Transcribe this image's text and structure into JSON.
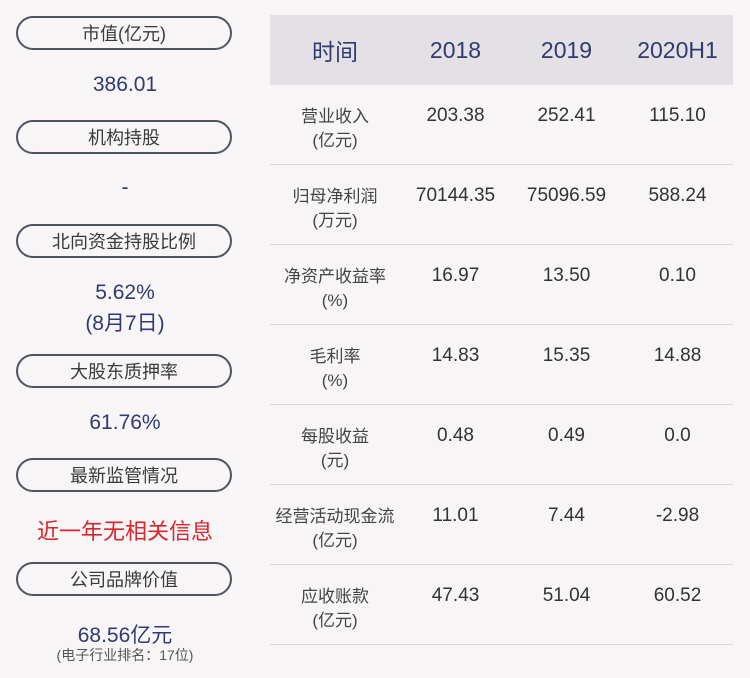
{
  "left": {
    "items": [
      {
        "label": "市值(亿元)",
        "value": "386.01"
      },
      {
        "label": "机构持股",
        "value": "-"
      },
      {
        "label": "北向资金持股比例",
        "value": "5.62%",
        "value2": "(8月7日)"
      },
      {
        "label": "大股东质押率",
        "value": "61.76%"
      },
      {
        "label": "最新监管情况",
        "value": "近一年无相关信息"
      },
      {
        "label": "公司品牌价值",
        "value": "68.56亿元",
        "note": "(电子行业排名：17位)"
      }
    ]
  },
  "table": {
    "headers": [
      "时间",
      "2018",
      "2019",
      "2020H1"
    ],
    "rows": [
      {
        "label1": "营业收入",
        "label2": "(亿元)",
        "v": [
          "203.38",
          "252.41",
          "115.10"
        ]
      },
      {
        "label1": "归母净利润",
        "label2": "(万元)",
        "v": [
          "70144.35",
          "75096.59",
          "588.24"
        ]
      },
      {
        "label1": "净资产收益率",
        "label2": "(%)",
        "v": [
          "16.97",
          "13.50",
          "0.10"
        ]
      },
      {
        "label1": "毛利率",
        "label2": "(%)",
        "v": [
          "14.83",
          "15.35",
          "14.88"
        ]
      },
      {
        "label1": "每股收益",
        "label2": "(元)",
        "v": [
          "0.48",
          "0.49",
          "0.0"
        ]
      },
      {
        "label1": "经营活动现金流",
        "label2": "(亿元)",
        "v": [
          "11.01",
          "7.44",
          "-2.98"
        ]
      },
      {
        "label1": "应收账款",
        "label2": "(亿元)",
        "v": [
          "47.43",
          "51.04",
          "60.52"
        ]
      }
    ]
  },
  "colors": {
    "value_blue": "#2f3a70",
    "warning_red": "#d9252b",
    "header_bg": "#e3e1e6",
    "page_bg": "#f8f5f7"
  }
}
